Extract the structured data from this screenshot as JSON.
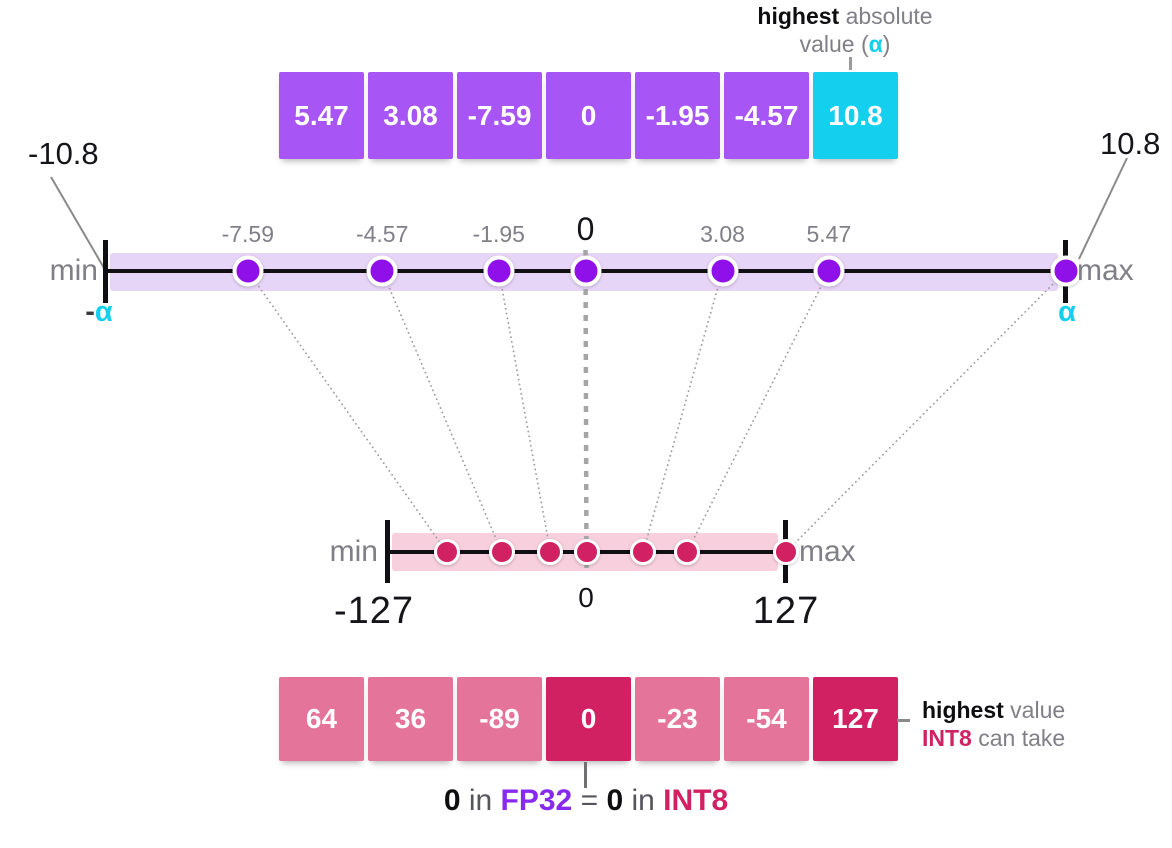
{
  "colors": {
    "purple_cell": "#A755F5",
    "cyan": "#15CFEF",
    "purple_dot": "#8F10E9",
    "purple_band": "#E7D5F8",
    "pink_cell": "#E5749B",
    "crimson": "#D22163",
    "pink_band": "#F7CFDD",
    "gray_text": "#7F7F87",
    "fp32_purple": "#8729F1"
  },
  "alpha_note": {
    "line1_bold": "highest",
    "line1_rest": " absolute",
    "line2_pre": "value (",
    "line2_alpha": "α",
    "line2_post": ")"
  },
  "fp32_row": {
    "cells": [
      {
        "label": "5.47",
        "variant": "purple"
      },
      {
        "label": "3.08",
        "variant": "purple"
      },
      {
        "label": "-7.59",
        "variant": "purple"
      },
      {
        "label": "0",
        "variant": "purple"
      },
      {
        "label": "-1.95",
        "variant": "purple"
      },
      {
        "label": "-4.57",
        "variant": "purple"
      },
      {
        "label": "10.8",
        "variant": "cyan"
      }
    ]
  },
  "fp32_axis": {
    "min_label": "min",
    "max_label": "max",
    "left_value_label": "-10.8",
    "right_value_label": "10.8",
    "minus_sign": "-",
    "alpha_symbol": "α",
    "range": 10.8,
    "points": [
      {
        "value": -7.59,
        "label": "-7.59",
        "emphasis": false
      },
      {
        "value": -4.57,
        "label": "-4.57",
        "emphasis": false
      },
      {
        "value": -1.95,
        "label": "-1.95",
        "emphasis": false
      },
      {
        "value": 0,
        "label": "0",
        "emphasis": true
      },
      {
        "value": 3.08,
        "label": "3.08",
        "emphasis": false
      },
      {
        "value": 5.47,
        "label": "5.47",
        "emphasis": false
      },
      {
        "value": 10.8,
        "label": "",
        "emphasis": false
      }
    ]
  },
  "int8_axis": {
    "min_label": "min",
    "max_label": "max",
    "left_value_label": "-127",
    "right_value_label": "127",
    "zero_label": "0",
    "range": 127,
    "points": [
      -89,
      -54,
      -23,
      0,
      36,
      64,
      127
    ]
  },
  "mappings": [
    [
      -7.59,
      -89
    ],
    [
      -4.57,
      -54
    ],
    [
      -1.95,
      -23
    ],
    [
      0,
      0
    ],
    [
      3.08,
      36
    ],
    [
      5.47,
      64
    ],
    [
      10.8,
      127
    ]
  ],
  "int8_row": {
    "cells": [
      {
        "label": "64",
        "variant": "pink"
      },
      {
        "label": "36",
        "variant": "pink"
      },
      {
        "label": "-89",
        "variant": "pink"
      },
      {
        "label": "0",
        "variant": "crimson"
      },
      {
        "label": "-23",
        "variant": "pink"
      },
      {
        "label": "-54",
        "variant": "pink"
      },
      {
        "label": "127",
        "variant": "crimson"
      }
    ]
  },
  "int8_note": {
    "line1_bold": "highest",
    "line1_rest": " value",
    "line2_int8": "INT8",
    "line2_rest": " can take"
  },
  "equation": {
    "zero1": "0",
    "in1": " in ",
    "fp32": "FP32",
    "eq": " = ",
    "zero2": "0",
    "in2": " in ",
    "int8": "INT8"
  }
}
